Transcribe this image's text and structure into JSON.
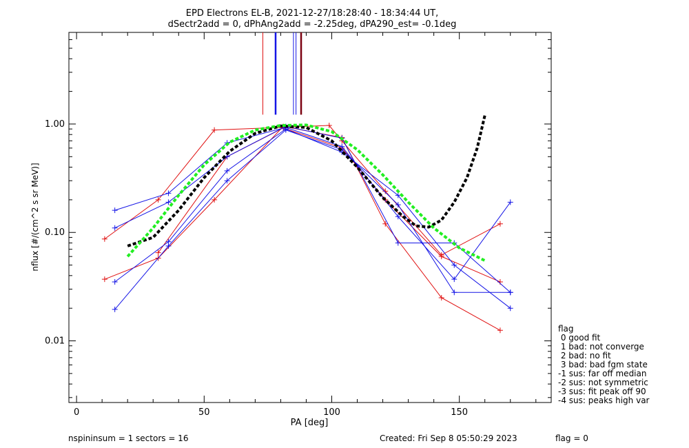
{
  "header": {
    "title_line1": "EPD Electrons EL-B, 2021-12-27/18:28:40 - 18:34:44 UT,",
    "title_line2": "dSectr2add = 0, dPhAng2add = -2.25deg, dPA290_est=  -0.1deg"
  },
  "footer": {
    "left": "nspininsum =  1  sectors = 16",
    "created": "Created: Fri Sep  8 05:50:29 2023",
    "flag": "flag = 0"
  },
  "flag_legend": {
    "title": "flag",
    "items": [
      " 0 good fit",
      " 1 bad: not converge",
      " 2 bad: no fit",
      " 3 bad: bad fgm state",
      "-1 sus: far off median",
      "-2 sus: not symmetric",
      "-3 sus: fit peak off 90",
      "-4 sus: peaks high var"
    ]
  },
  "colors": {
    "red": "#e01010",
    "blue": "#1414e6",
    "dark_red": "#7a0010",
    "green": "#22ee22",
    "black": "#000000"
  },
  "chart_data": {
    "type": "line",
    "xlabel": "PA [deg]",
    "ylabel": "nflux [#/(cm^2 s sr MeV)]",
    "xlim": [
      -3,
      186
    ],
    "ylim": [
      0.0027,
      7.0
    ],
    "yscale": "log",
    "xticks": [
      0,
      50,
      100,
      150
    ],
    "xtick_labels": [
      "0",
      "50",
      "100",
      "150"
    ],
    "yticks": [
      0.01,
      0.1,
      1.0
    ],
    "ytick_labels": [
      "0.01",
      "0.10",
      "1.00"
    ],
    "series": [
      {
        "color": "red",
        "points": [
          [
            11,
            0.087
          ],
          [
            32,
            0.2
          ],
          [
            54,
            0.88
          ],
          [
            99,
            0.97
          ],
          [
            104,
            0.7
          ],
          [
            121,
            0.24
          ],
          [
            143,
            0.062
          ],
          [
            166,
            0.12
          ]
        ]
      },
      {
        "color": "red",
        "points": [
          [
            11,
            0.037
          ],
          [
            32,
            0.058
          ],
          [
            54,
            0.2
          ],
          [
            81,
            0.95
          ],
          [
            104,
            0.75
          ],
          [
            121,
            0.12
          ],
          [
            143,
            0.025
          ],
          [
            166,
            0.0125
          ]
        ]
      },
      {
        "color": "red",
        "points": [
          [
            32,
            0.065
          ],
          [
            59,
            0.5
          ],
          [
            81,
            0.92
          ],
          [
            104,
            0.6
          ],
          [
            121,
            0.2
          ],
          [
            143,
            0.06
          ],
          [
            166,
            0.035
          ]
        ]
      },
      {
        "color": "blue",
        "points": [
          [
            15,
            0.16
          ],
          [
            36,
            0.23
          ],
          [
            59,
            0.67
          ],
          [
            82,
            0.93
          ],
          [
            104,
            0.62
          ],
          [
            126,
            0.14
          ],
          [
            148,
            0.037
          ],
          [
            170,
            0.19
          ]
        ]
      },
      {
        "color": "blue",
        "points": [
          [
            15,
            0.11
          ],
          [
            36,
            0.19
          ],
          [
            59,
            0.5
          ],
          [
            82,
            0.95
          ],
          [
            104,
            0.74
          ],
          [
            126,
            0.08
          ],
          [
            148,
            0.08
          ],
          [
            170,
            0.028
          ]
        ]
      },
      {
        "color": "blue",
        "points": [
          [
            15,
            0.035
          ],
          [
            36,
            0.082
          ],
          [
            59,
            0.37
          ],
          [
            82,
            0.9
          ],
          [
            104,
            0.55
          ],
          [
            126,
            0.22
          ],
          [
            148,
            0.05
          ],
          [
            170,
            0.02
          ]
        ]
      },
      {
        "color": "blue",
        "points": [
          [
            15,
            0.0195
          ],
          [
            36,
            0.075
          ],
          [
            59,
            0.3
          ],
          [
            82,
            0.88
          ],
          [
            104,
            0.58
          ],
          [
            126,
            0.18
          ],
          [
            148,
            0.028
          ],
          [
            170,
            0.028
          ]
        ]
      }
    ],
    "fits": [
      {
        "color": "black",
        "style": "dashed",
        "points": [
          [
            20,
            0.075
          ],
          [
            30,
            0.09
          ],
          [
            40,
            0.16
          ],
          [
            50,
            0.32
          ],
          [
            60,
            0.56
          ],
          [
            70,
            0.82
          ],
          [
            80,
            0.96
          ],
          [
            90,
            0.93
          ],
          [
            100,
            0.7
          ],
          [
            110,
            0.4
          ],
          [
            120,
            0.21
          ],
          [
            128,
            0.14
          ],
          [
            133,
            0.115
          ],
          [
            138,
            0.112
          ],
          [
            143,
            0.13
          ],
          [
            148,
            0.19
          ],
          [
            153,
            0.32
          ],
          [
            157,
            0.6
          ],
          [
            160,
            1.2
          ]
        ]
      },
      {
        "color": "green",
        "style": "dashed",
        "points": [
          [
            20,
            0.06
          ],
          [
            30,
            0.11
          ],
          [
            40,
            0.22
          ],
          [
            50,
            0.42
          ],
          [
            60,
            0.68
          ],
          [
            70,
            0.88
          ],
          [
            80,
            0.97
          ],
          [
            90,
            0.98
          ],
          [
            100,
            0.85
          ],
          [
            110,
            0.58
          ],
          [
            120,
            0.34
          ],
          [
            130,
            0.19
          ],
          [
            140,
            0.11
          ],
          [
            150,
            0.072
          ],
          [
            160,
            0.055
          ]
        ]
      }
    ],
    "vertical_markers": [
      {
        "x": 73,
        "color": "red",
        "top": 7.0,
        "bottom": 1.22,
        "width": 1
      },
      {
        "x": 78,
        "color": "blue",
        "top": 7.0,
        "bottom": 1.22,
        "width": 2.5
      },
      {
        "x": 85,
        "color": "blue",
        "top": 7.0,
        "bottom": 1.22,
        "width": 1
      },
      {
        "x": 86,
        "color": "blue",
        "top": 7.0,
        "bottom": 1.22,
        "width": 1
      },
      {
        "x": 88,
        "color": "dark_red",
        "top": 7.0,
        "bottom": 1.22,
        "width": 2.5
      }
    ],
    "grid": false,
    "legend": "right"
  }
}
